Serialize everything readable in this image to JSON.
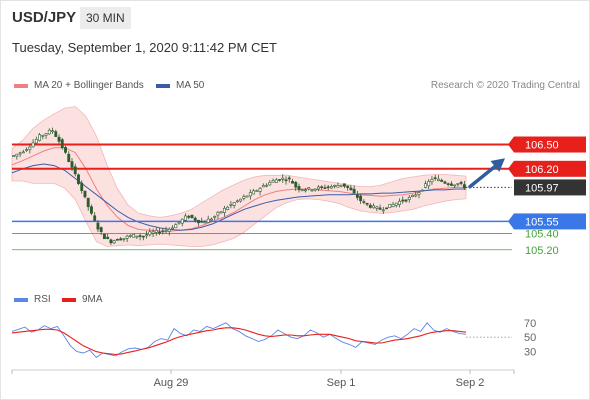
{
  "header": {
    "symbol": "USD/JPY",
    "timeframe": "30 MIN",
    "datetime": "Tuesday, September 1, 2020 9:11:42 PM CET"
  },
  "legend": {
    "ma20": "MA 20 + Bollinger Bands",
    "ma50": "MA 50",
    "research": "Research © 2020 Trading Central"
  },
  "rsi_legend": {
    "rsi": "RSI",
    "ma9": "9MA"
  },
  "colors": {
    "resistance": "#e8201c",
    "support": "#3b78e7",
    "target_support": "#47a33d",
    "current": "#333333",
    "candle": "#2e5b2e",
    "ma20": "#f08080",
    "ma50": "#3a5ca8",
    "band_fill": "#fbd9d9",
    "rsi": "#5b86e5",
    "rsi_ma": "#e8201c",
    "arrow": "#2f5d9e"
  },
  "chart_data": [
    {
      "type": "candlestick",
      "x_labels": [
        "Aug 29",
        "Sep 1",
        "Sep 2"
      ],
      "ylim": [
        104.95,
        107.05
      ],
      "price_levels": [
        {
          "value": 106.5,
          "label": "106.50",
          "kind": "resistance"
        },
        {
          "value": 106.2,
          "label": "106.20",
          "kind": "resistance"
        },
        {
          "value": 105.97,
          "label": "105.97",
          "kind": "current"
        },
        {
          "value": 105.55,
          "label": "105.55",
          "kind": "support"
        },
        {
          "value": 105.4,
          "label": "105.40",
          "kind": "target_support"
        },
        {
          "value": 105.2,
          "label": "105.20",
          "kind": "target_support"
        }
      ],
      "close_path": [
        106.36,
        106.4,
        106.45,
        106.52,
        106.6,
        106.64,
        106.68,
        106.55,
        106.4,
        106.22,
        106.05,
        105.85,
        105.65,
        105.48,
        105.36,
        105.3,
        105.33,
        105.34,
        105.37,
        105.38,
        105.36,
        105.4,
        105.42,
        105.43,
        105.45,
        105.5,
        105.56,
        105.62,
        105.58,
        105.54,
        105.56,
        105.6,
        105.66,
        105.72,
        105.77,
        105.81,
        105.86,
        105.9,
        105.95,
        106.0,
        106.04,
        106.07,
        106.08,
        106.06,
        105.96,
        105.95,
        105.95,
        105.96,
        105.97,
        105.98,
        105.99,
        106.01,
        105.96,
        105.88,
        105.8,
        105.75,
        105.72,
        105.7,
        105.73,
        105.76,
        105.8,
        105.82,
        105.86,
        105.92,
        106.0,
        106.08,
        106.06,
        106.03,
        106.01,
        106.02,
        105.98
      ],
      "projection": {
        "from": 105.98,
        "to": 106.33
      },
      "bands": {
        "ma20": [
          106.25,
          106.3,
          106.36,
          106.42,
          106.46,
          106.46,
          106.4,
          106.2,
          105.95,
          105.75,
          105.6,
          105.5,
          105.45,
          105.44,
          105.43,
          105.43,
          105.44,
          105.46,
          105.5,
          105.55,
          105.6,
          105.66,
          105.74,
          105.82,
          105.88,
          105.92,
          105.94,
          105.95,
          105.95,
          105.94,
          105.93,
          105.92,
          105.9,
          105.88,
          105.87,
          105.86,
          105.87,
          105.88,
          105.9,
          105.93,
          105.95,
          105.96,
          105.97,
          105.97
        ],
        "upper": [
          106.45,
          106.55,
          106.7,
          106.8,
          106.88,
          106.95,
          106.97,
          106.85,
          106.6,
          106.25,
          105.95,
          105.75,
          105.65,
          105.62,
          105.6,
          105.62,
          105.65,
          105.7,
          105.78,
          105.86,
          105.94,
          106.0,
          106.06,
          106.1,
          106.12,
          106.12,
          106.12,
          106.1,
          106.08,
          106.06,
          106.04,
          106.02,
          106.0,
          105.98,
          105.98,
          106.0,
          106.04,
          106.08,
          106.1,
          106.12,
          106.13,
          106.13,
          106.12,
          106.11
        ],
        "lower": [
          106.05,
          106.05,
          106.02,
          106.02,
          106.02,
          105.96,
          105.82,
          105.55,
          105.3,
          105.24,
          105.25,
          105.26,
          105.25,
          105.26,
          105.27,
          105.26,
          105.25,
          105.24,
          105.24,
          105.26,
          105.3,
          105.34,
          105.42,
          105.52,
          105.62,
          105.72,
          105.78,
          105.82,
          105.83,
          105.82,
          105.8,
          105.77,
          105.72,
          105.68,
          105.66,
          105.65,
          105.66,
          105.68,
          105.7,
          105.74,
          105.77,
          105.8,
          105.82,
          105.83
        ],
        "ma50": [
          106.15,
          106.2,
          106.24,
          106.26,
          106.24,
          106.18,
          106.08,
          105.98,
          105.88,
          105.78,
          105.68,
          105.6,
          105.54,
          105.5,
          105.47,
          105.45,
          105.44,
          105.45,
          105.48,
          105.52,
          105.58,
          105.64,
          105.7,
          105.74,
          105.78,
          105.81,
          105.83,
          105.85,
          105.86,
          105.87,
          105.88,
          105.88,
          105.88,
          105.89,
          105.89,
          105.9,
          105.9,
          105.91,
          105.92,
          105.93,
          105.94,
          105.94,
          105.95,
          105.95
        ]
      }
    },
    {
      "type": "line",
      "title": "RSI",
      "y_ticks": [
        70,
        50,
        30
      ],
      "ylim": [
        10,
        85
      ],
      "series": [
        {
          "name": "RSI",
          "values": [
            58,
            61,
            64,
            57,
            60,
            66,
            62,
            65,
            52,
            38,
            30,
            28,
            32,
            22,
            28,
            26,
            24,
            30,
            34,
            35,
            33,
            36,
            44,
            48,
            46,
            62,
            55,
            52,
            60,
            58,
            65,
            62,
            66,
            70,
            62,
            58,
            52,
            48,
            44,
            47,
            52,
            60,
            55,
            50,
            48,
            52,
            60,
            56,
            50,
            54,
            48,
            43,
            40,
            36,
            44,
            42,
            40,
            46,
            50,
            52,
            48,
            54,
            62,
            58,
            70,
            60,
            57,
            62,
            58,
            55,
            54
          ]
        },
        {
          "name": "9MA",
          "values": [
            56,
            57,
            58,
            59,
            60,
            61,
            61,
            60,
            56,
            50,
            44,
            38,
            34,
            30,
            28,
            27,
            26,
            27,
            29,
            31,
            33,
            35,
            38,
            41,
            44,
            48,
            51,
            53,
            55,
            57,
            59,
            60,
            62,
            63,
            63,
            62,
            60,
            57,
            54,
            52,
            51,
            52,
            53,
            53,
            52,
            52,
            53,
            54,
            54,
            54,
            52,
            50,
            48,
            45,
            44,
            43,
            42,
            42,
            44,
            46,
            47,
            48,
            50,
            52,
            55,
            57,
            58,
            59,
            59,
            58,
            57
          ]
        }
      ]
    }
  ]
}
